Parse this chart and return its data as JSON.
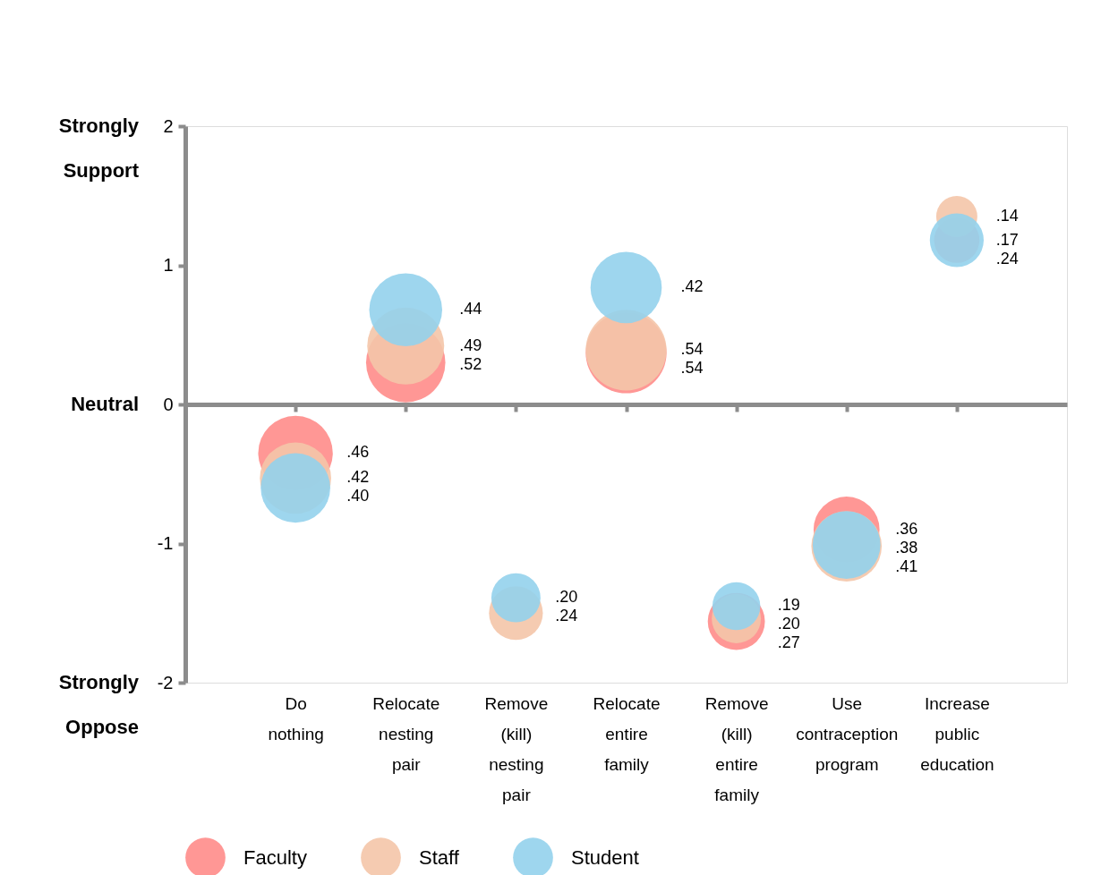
{
  "chart_data": {
    "type": "bubble",
    "categories": [
      "Do nothing",
      "Relocate nesting pair",
      "Remove (kill) nesting pair",
      "Relocate entire family",
      "Remove (kill) entire family",
      "Use contraception program",
      "Increase public education"
    ],
    "series": [
      {
        "name": "Faculty",
        "color": "#ff8c8a",
        "values": [
          -0.35,
          0.3,
          null,
          0.37,
          -1.56,
          -0.9,
          1.18
        ],
        "sizes": [
          0.46,
          0.52,
          null,
          0.54,
          0.27,
          0.36,
          0.17
        ],
        "value_labels": [
          ".46",
          ".52",
          null,
          ".54",
          ".27",
          ".36",
          ".17"
        ]
      },
      {
        "name": "Staff",
        "color": "#f4c5a9",
        "values": [
          -0.53,
          0.42,
          -1.5,
          0.39,
          -1.54,
          -1.02,
          1.35
        ],
        "sizes": [
          0.42,
          0.49,
          0.24,
          0.54,
          0.2,
          0.41,
          0.14
        ],
        "value_labels": [
          ".42",
          ".49",
          ".24",
          ".54",
          ".20",
          ".41",
          ".14"
        ]
      },
      {
        "name": "Student",
        "color": "#93d1ec",
        "values": [
          -0.6,
          0.68,
          -1.39,
          0.84,
          -1.45,
          -1.01,
          1.18
        ],
        "sizes": [
          0.4,
          0.44,
          0.2,
          0.42,
          0.19,
          0.38,
          0.24
        ],
        "value_labels": [
          ".40",
          ".44",
          ".20",
          ".42",
          ".19",
          ".38",
          ".24"
        ]
      }
    ],
    "ylim": [
      -2,
      2
    ],
    "yticks": [
      -2,
      -1,
      0,
      1,
      2
    ],
    "annotations": [
      "Strongly Support",
      "Neutral",
      "Strongly Oppose"
    ],
    "legend": "bottom"
  }
}
